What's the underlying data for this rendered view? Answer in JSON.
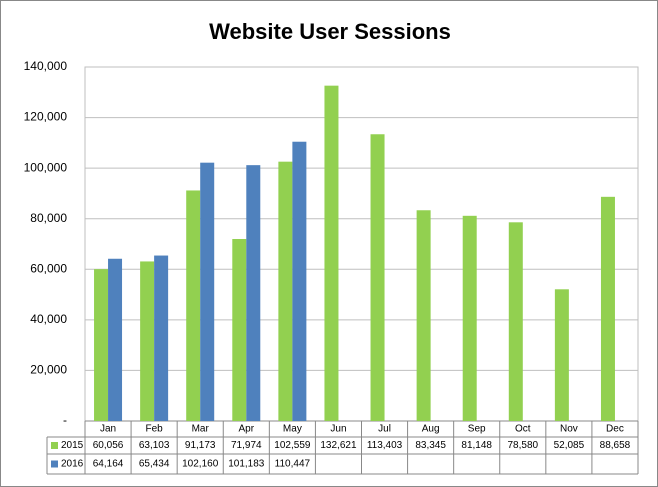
{
  "chart_data": {
    "type": "bar",
    "title": "Website User Sessions",
    "categories": [
      "Jan",
      "Feb",
      "Mar",
      "Apr",
      "May",
      "Jun",
      "Jul",
      "Aug",
      "Sep",
      "Oct",
      "Nov",
      "Dec"
    ],
    "series": [
      {
        "name": "2015",
        "color": "#92d050",
        "values": [
          60056,
          63103,
          91173,
          71974,
          102559,
          132621,
          113403,
          83345,
          81148,
          78580,
          52085,
          88658
        ],
        "value_labels": [
          "60,056",
          "63,103",
          "91,173",
          "71,974",
          "102,559",
          "132,621",
          "113,403",
          "83,345",
          "81,148",
          "78,580",
          "52,085",
          "88,658"
        ]
      },
      {
        "name": "2016",
        "color": "#4f81bd",
        "values": [
          64164,
          65434,
          102160,
          101183,
          110447,
          null,
          null,
          null,
          null,
          null,
          null,
          null
        ],
        "value_labels": [
          "64,164",
          "65,434",
          "102,160",
          "101,183",
          "110,447",
          null,
          null,
          null,
          null,
          null,
          null,
          null
        ]
      }
    ],
    "ylim": [
      0,
      140000
    ],
    "yticks": [
      {
        "value": 0,
        "label": "-"
      },
      {
        "value": 20000,
        "label": "20,000"
      },
      {
        "value": 40000,
        "label": "40,000"
      },
      {
        "value": 60000,
        "label": "60,000"
      },
      {
        "value": 80000,
        "label": "80,000"
      },
      {
        "value": 100000,
        "label": "100,000"
      },
      {
        "value": 120000,
        "label": "120,000"
      },
      {
        "value": 140000,
        "label": "140,000"
      }
    ],
    "grid": true
  }
}
